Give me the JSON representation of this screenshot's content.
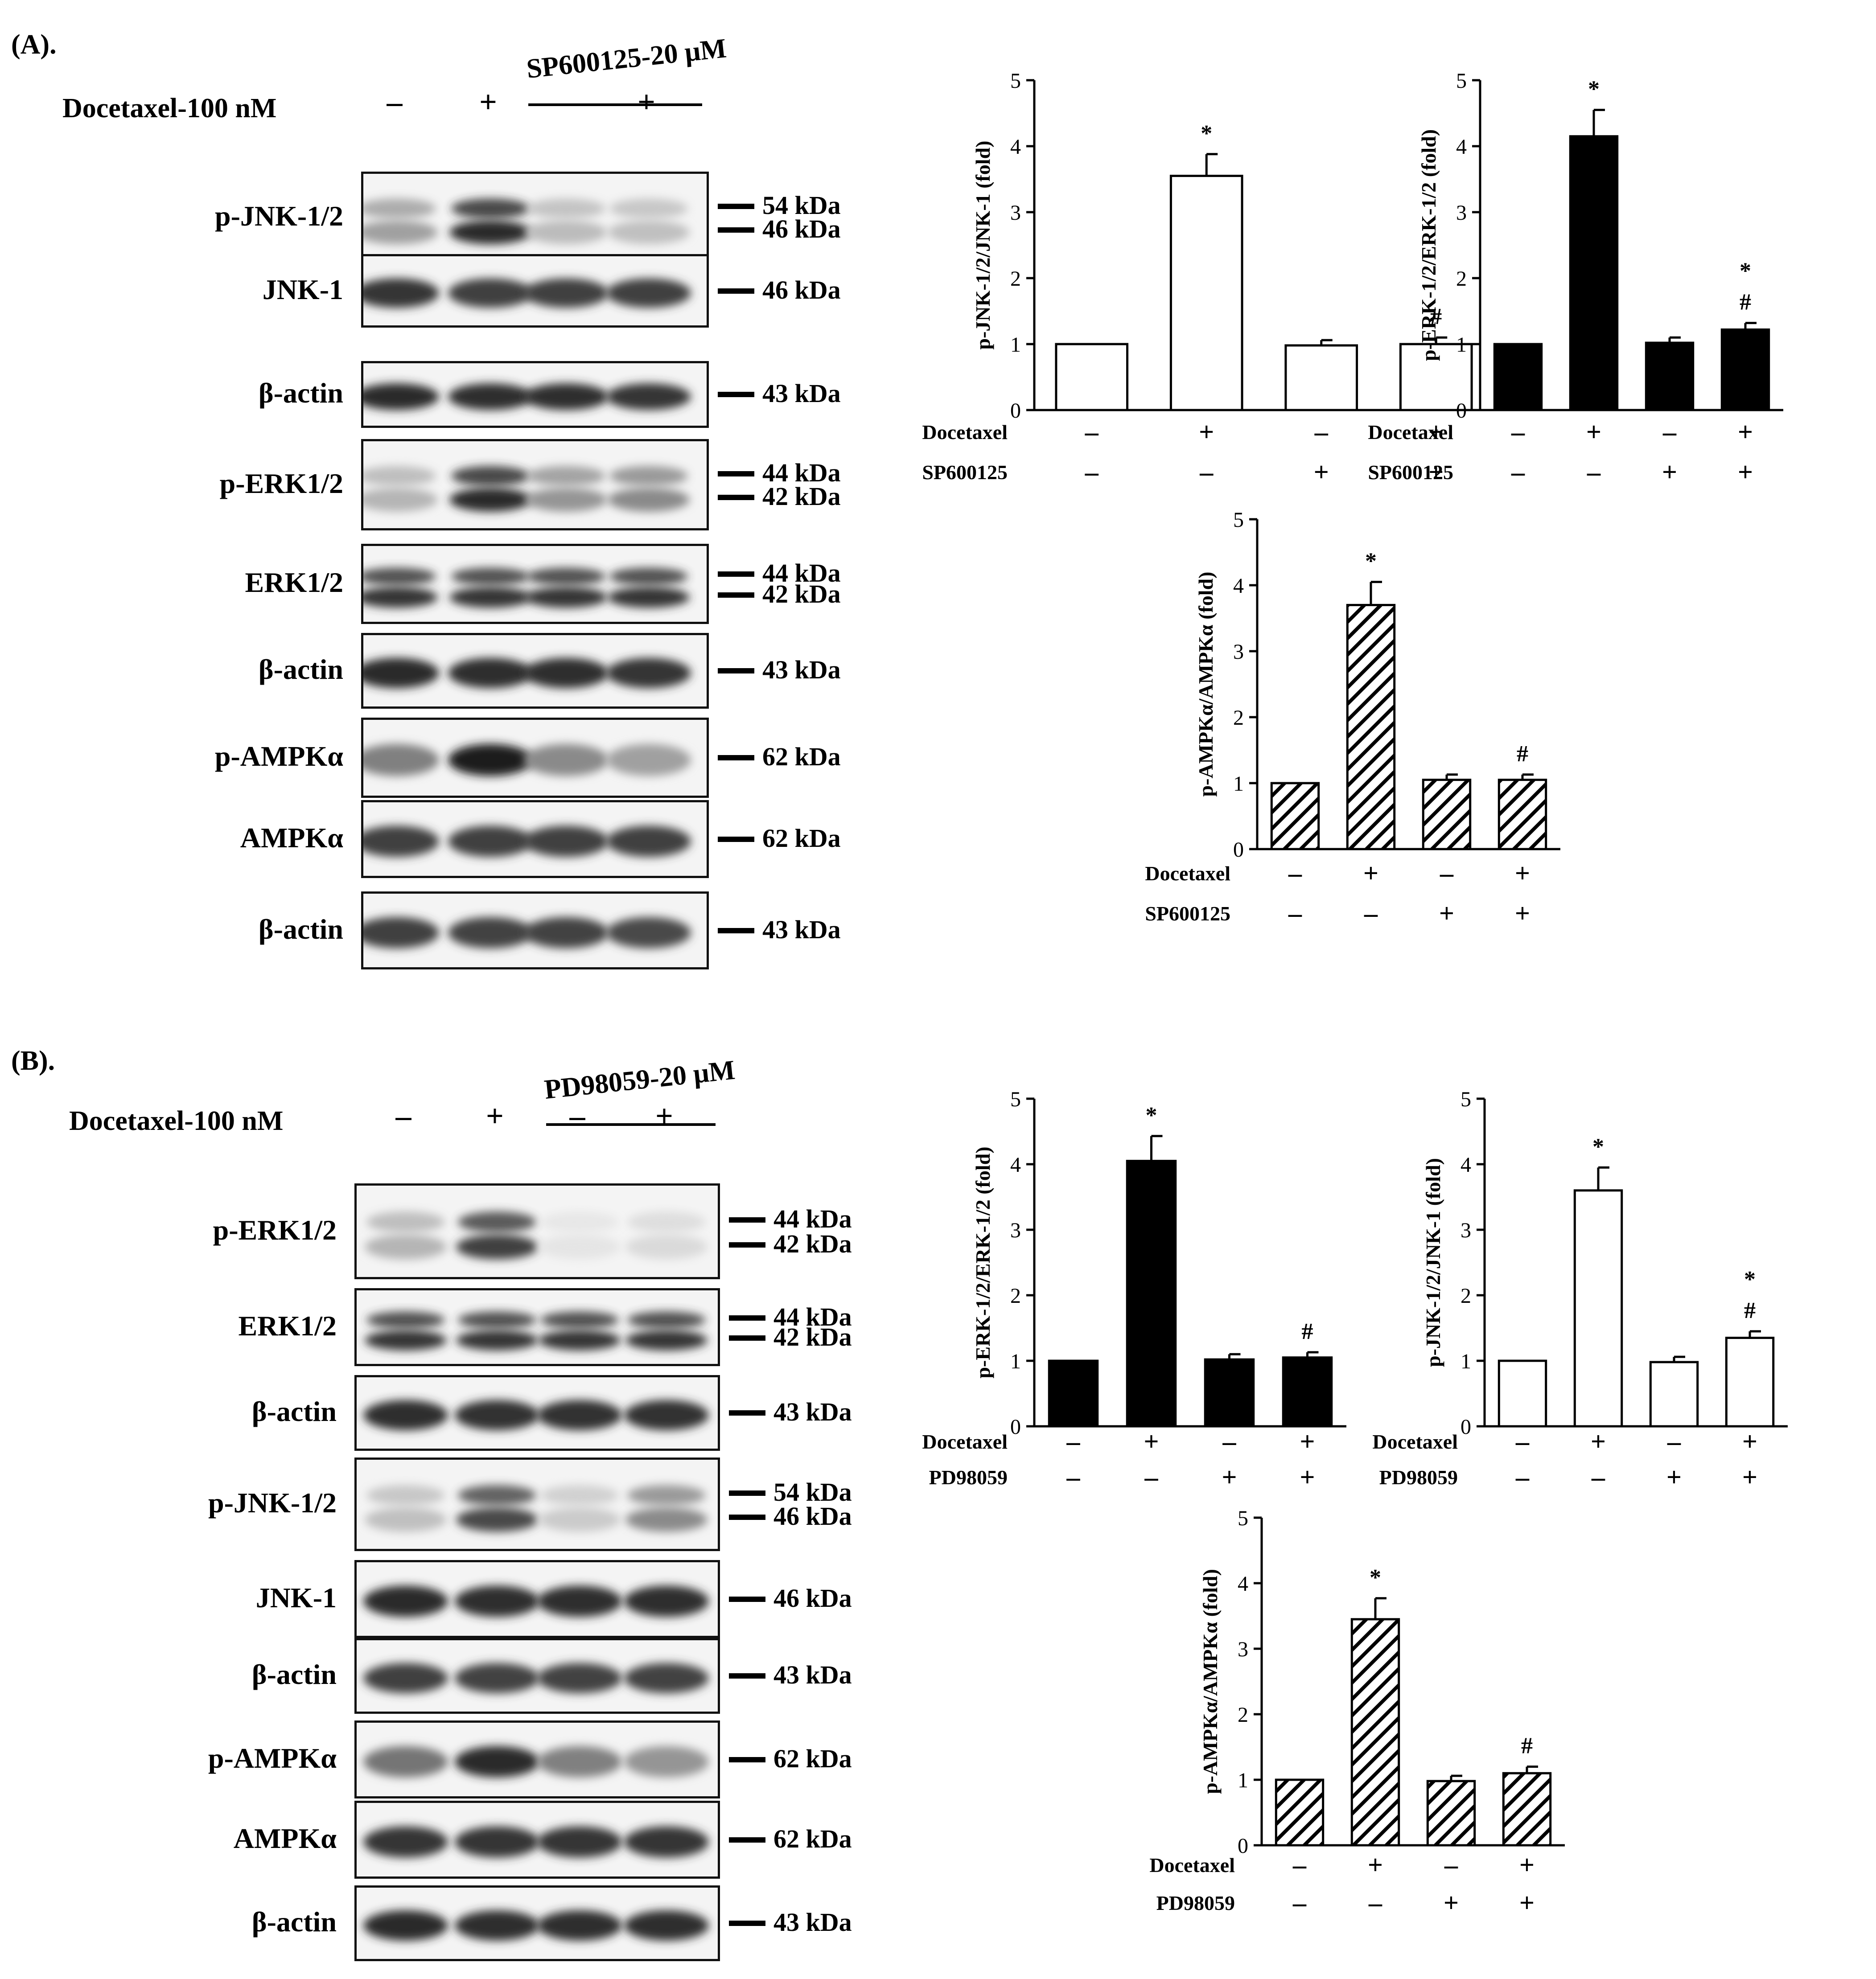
{
  "panels": [
    {
      "label": "(A).",
      "treatment_label": "Docetaxel-100 nM",
      "inhibitor_label": "SP600125-20 μM",
      "treatment_signs": [
        "–",
        "+",
        "–",
        "+"
      ],
      "blots": [
        {
          "name": "p-JNK-1/2",
          "kda": [
            "54 kDa",
            "46 kDa"
          ],
          "bands": [
            0.35,
            0.9,
            0.22,
            0.2
          ],
          "double": true
        },
        {
          "name": "JNK-1",
          "kda": [
            "46 kDa"
          ],
          "bands": [
            0.85,
            0.8,
            0.8,
            0.8
          ],
          "double": false
        },
        {
          "name": "β-actin",
          "kda": [
            "43 kDa"
          ],
          "bands": [
            0.9,
            0.88,
            0.88,
            0.85
          ],
          "double": false
        },
        {
          "name": "p-ERK1/2",
          "kda": [
            "44 kDa",
            "42 kDa"
          ],
          "bands": [
            0.25,
            0.9,
            0.4,
            0.45
          ],
          "double": true
        },
        {
          "name": "ERK1/2",
          "kda": [
            "44 kDa",
            "42 kDa"
          ],
          "bands": [
            0.85,
            0.85,
            0.85,
            0.85
          ],
          "double": true
        },
        {
          "name": "β-actin",
          "kda": [
            "43 kDa"
          ],
          "bands": [
            0.9,
            0.88,
            0.88,
            0.85
          ],
          "double": false
        },
        {
          "name": "p-AMPKα",
          "kda": [
            "62 kDa"
          ],
          "bands": [
            0.5,
            0.95,
            0.45,
            0.35
          ],
          "double": false
        },
        {
          "name": "AMPKα",
          "kda": [
            "62 kDa"
          ],
          "bands": [
            0.8,
            0.8,
            0.8,
            0.8
          ],
          "double": false
        },
        {
          "name": "β-actin",
          "kda": [
            "43 kDa"
          ],
          "bands": [
            0.8,
            0.78,
            0.78,
            0.76
          ],
          "double": false
        }
      ]
    },
    {
      "label": "(B).",
      "treatment_label": "Docetaxel-100 nM",
      "inhibitor_label": "PD98059-20 μM",
      "treatment_signs": [
        "–",
        "+",
        "–",
        "+"
      ],
      "blots": [
        {
          "name": "p-ERK1/2",
          "kda": [
            "44 kDa",
            "42 kDa"
          ],
          "bands": [
            0.25,
            0.8,
            0.03,
            0.08
          ],
          "double": true
        },
        {
          "name": "ERK1/2",
          "kda": [
            "44 kDa",
            "42 kDa"
          ],
          "bands": [
            0.85,
            0.85,
            0.85,
            0.85
          ],
          "double": true
        },
        {
          "name": "β-actin",
          "kda": [
            "43 kDa"
          ],
          "bands": [
            0.88,
            0.86,
            0.86,
            0.86
          ],
          "double": false
        },
        {
          "name": "p-JNK-1/2",
          "kda": [
            "54 kDa",
            "46 kDa"
          ],
          "bands": [
            0.2,
            0.75,
            0.15,
            0.45
          ],
          "double": true
        },
        {
          "name": "JNK-1",
          "kda": [
            "46 kDa"
          ],
          "bands": [
            0.9,
            0.88,
            0.88,
            0.88
          ],
          "double": false
        },
        {
          "name": "β-actin",
          "kda": [
            "43 kDa"
          ],
          "bands": [
            0.8,
            0.78,
            0.78,
            0.78
          ],
          "double": false
        },
        {
          "name": "p-AMPKα",
          "kda": [
            "62 kDa"
          ],
          "bands": [
            0.55,
            0.9,
            0.5,
            0.4
          ],
          "double": false
        },
        {
          "name": "AMPKα",
          "kda": [
            "62 kDa"
          ],
          "bands": [
            0.85,
            0.85,
            0.85,
            0.85
          ],
          "double": false
        },
        {
          "name": "β-actin",
          "kda": [
            "43 kDa"
          ],
          "bands": [
            0.9,
            0.88,
            0.88,
            0.88
          ],
          "double": false
        }
      ]
    }
  ],
  "chart_data": [
    {
      "type": "bar",
      "panel": "A",
      "ylabel": "p-JNK-1/2/JNK-1 (fold)",
      "ylim": [
        0,
        5
      ],
      "yticks": [
        0,
        1,
        2,
        3,
        4,
        5
      ],
      "values": [
        1,
        3.55,
        0.98,
        1.0
      ],
      "errors": [
        0,
        0.33,
        0.08,
        0.1
      ],
      "annotations": [
        [],
        [
          "*"
        ],
        [],
        [
          "#"
        ]
      ],
      "fill": "white",
      "row_labels": [
        "Docetaxel",
        "SP600125"
      ],
      "row_signs": [
        [
          "–",
          "+",
          "–",
          "+"
        ],
        [
          "–",
          "–",
          "+",
          "+"
        ]
      ]
    },
    {
      "type": "bar",
      "panel": "A",
      "ylabel": "p-ERK-1/2/ERK-1/2 (fold)",
      "ylim": [
        0,
        5
      ],
      "yticks": [
        0,
        1,
        2,
        3,
        4,
        5
      ],
      "values": [
        1,
        4.15,
        1.02,
        1.22
      ],
      "errors": [
        0,
        0.4,
        0.08,
        0.1
      ],
      "annotations": [
        [],
        [
          "*"
        ],
        [],
        [
          "*",
          "#"
        ]
      ],
      "fill": "black",
      "row_labels": [
        "Docetaxel",
        "SP600125"
      ],
      "row_signs": [
        [
          "–",
          "+",
          "–",
          "+"
        ],
        [
          "–",
          "–",
          "+",
          "+"
        ]
      ]
    },
    {
      "type": "bar",
      "panel": "A",
      "ylabel": "p-AMPKα/AMPKα (fold)",
      "ylim": [
        0,
        5
      ],
      "yticks": [
        0,
        1,
        2,
        3,
        4,
        5
      ],
      "values": [
        1,
        3.7,
        1.05,
        1.05
      ],
      "errors": [
        0,
        0.35,
        0.08,
        0.08
      ],
      "annotations": [
        [],
        [
          "*"
        ],
        [],
        [
          "#"
        ]
      ],
      "fill": "hatch",
      "row_labels": [
        "Docetaxel",
        "SP600125"
      ],
      "row_signs": [
        [
          "–",
          "+",
          "–",
          "+"
        ],
        [
          "–",
          "–",
          "+",
          "+"
        ]
      ]
    },
    {
      "type": "bar",
      "panel": "B",
      "ylabel": "p-ERK-1/2/ERK-1/2 (fold)",
      "ylim": [
        0,
        5
      ],
      "yticks": [
        0,
        1,
        2,
        3,
        4,
        5
      ],
      "values": [
        1,
        4.05,
        1.02,
        1.05
      ],
      "errors": [
        0,
        0.38,
        0.08,
        0.08
      ],
      "annotations": [
        [],
        [
          "*"
        ],
        [],
        [
          "#"
        ]
      ],
      "fill": "black",
      "row_labels": [
        "Docetaxel",
        "PD98059"
      ],
      "row_signs": [
        [
          "–",
          "+",
          "–",
          "+"
        ],
        [
          "–",
          "–",
          "+",
          "+"
        ]
      ]
    },
    {
      "type": "bar",
      "panel": "B",
      "ylabel": "p-JNK-1/2/JNK-1 (fold)",
      "ylim": [
        0,
        5
      ],
      "yticks": [
        0,
        1,
        2,
        3,
        4,
        5
      ],
      "values": [
        1,
        3.6,
        0.98,
        1.35
      ],
      "errors": [
        0,
        0.35,
        0.08,
        0.1
      ],
      "annotations": [
        [],
        [
          "*"
        ],
        [],
        [
          "*",
          "#"
        ]
      ],
      "fill": "white",
      "row_labels": [
        "Docetaxel",
        "PD98059"
      ],
      "row_signs": [
        [
          "–",
          "+",
          "–",
          "+"
        ],
        [
          "–",
          "–",
          "+",
          "+"
        ]
      ]
    },
    {
      "type": "bar",
      "panel": "B",
      "ylabel": "p-AMPKα/AMPKα (fold)",
      "ylim": [
        0,
        5
      ],
      "yticks": [
        0,
        1,
        2,
        3,
        4,
        5
      ],
      "values": [
        1,
        3.45,
        0.98,
        1.1
      ],
      "errors": [
        0,
        0.32,
        0.08,
        0.1
      ],
      "annotations": [
        [],
        [
          "*"
        ],
        [],
        [
          "#"
        ]
      ],
      "fill": "hatch",
      "row_labels": [
        "Docetaxel",
        "PD98059"
      ],
      "row_signs": [
        [
          "–",
          "+",
          "–",
          "+"
        ],
        [
          "–",
          "–",
          "+",
          "+"
        ]
      ]
    }
  ]
}
